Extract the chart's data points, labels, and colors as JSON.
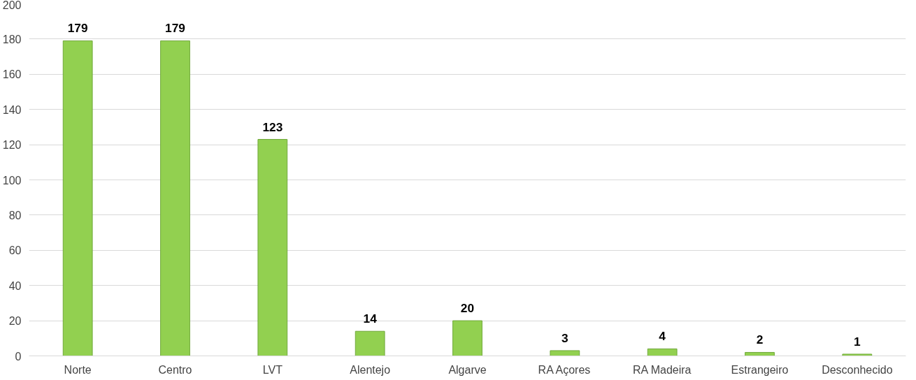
{
  "chart_data": {
    "type": "bar",
    "categories": [
      "Norte",
      "Centro",
      "LVT",
      "Alentejo",
      "Algarve",
      "RA Açores",
      "RA Madeira",
      "Estrangeiro",
      "Desconhecido"
    ],
    "values": [
      179,
      179,
      123,
      14,
      20,
      3,
      4,
      2,
      1
    ],
    "color": "#92d050",
    "ylim": [
      0,
      200
    ],
    "yticks": [
      0,
      20,
      40,
      60,
      80,
      100,
      120,
      140,
      160,
      180,
      200
    ],
    "grid": "y",
    "data_labels": true
  }
}
